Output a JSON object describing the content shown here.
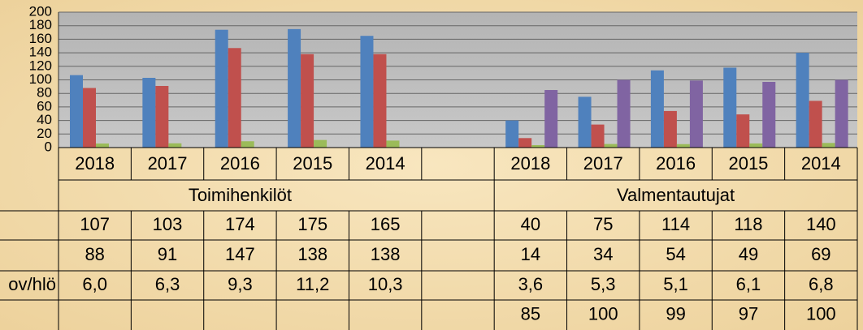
{
  "chart_data": {
    "type": "bar",
    "categories": [
      "2018",
      "2017",
      "2016",
      "2015",
      "2014",
      null,
      "2018",
      "2017",
      "2016",
      "2015",
      "2014"
    ],
    "groups": [
      "Toimihenkilöt",
      "Valmentautujat"
    ],
    "series": [
      {
        "color": "#4f81bd",
        "values": [
          107,
          103,
          174,
          175,
          165,
          null,
          40,
          75,
          114,
          118,
          140
        ]
      },
      {
        "color": "#c0504d",
        "values": [
          88,
          91,
          147,
          138,
          138,
          null,
          14,
          34,
          54,
          49,
          69
        ]
      },
      {
        "name": "ov/hlö",
        "color": "#9bbb59",
        "values": [
          6.0,
          6.3,
          9.3,
          11.2,
          10.3,
          null,
          3.6,
          5.3,
          5.1,
          6.1,
          6.8
        ],
        "value_labels": [
          "6,0",
          "6,3",
          "9,3",
          "11,2",
          "10,3",
          null,
          "3,6",
          "5,3",
          "5,1",
          "6,1",
          "6,8"
        ]
      },
      {
        "color": "#8064a2",
        "values": [
          null,
          null,
          null,
          null,
          null,
          null,
          85,
          100,
          99,
          97,
          100
        ]
      }
    ],
    "ylim": [
      0,
      200
    ],
    "yticks": [
      0,
      20,
      40,
      60,
      80,
      100,
      120,
      140,
      160,
      180,
      200
    ],
    "grid": true
  }
}
